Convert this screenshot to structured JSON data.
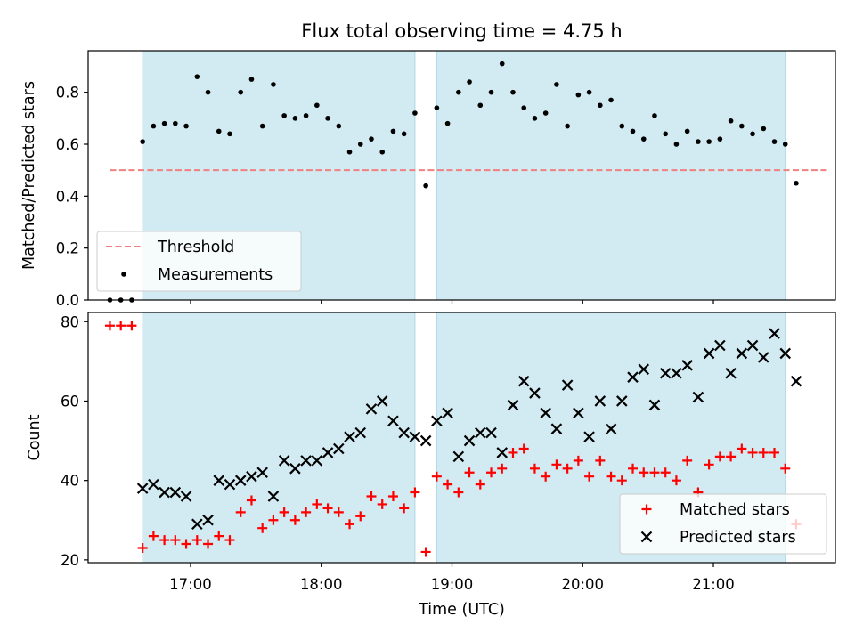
{
  "title": "Flux total observing time = 4.75 h",
  "colors": {
    "shade": "#add8e6",
    "threshold": "#f08080",
    "measurement": "#000000",
    "matched": "#ff0000",
    "predicted": "#000000"
  },
  "chart_data": [
    {
      "type": "scatter",
      "panel": "top",
      "title": "Flux total observing time = 4.75 h",
      "xlabel": "",
      "ylabel": "Matched/Predicted stars",
      "xlim": [
        "16:13",
        "21:56"
      ],
      "ylim": [
        0,
        0.96
      ],
      "yticks": [
        0.0,
        0.2,
        0.4,
        0.6,
        0.8
      ],
      "ytick_labels": [
        "0.0",
        "0.2",
        "0.4",
        "0.6",
        "0.8"
      ],
      "xticks": [
        "17:00",
        "18:00",
        "19:00",
        "20:00",
        "21:00"
      ],
      "grid": false,
      "legend_position": "lower-left",
      "legend": [
        "Threshold",
        "Measurements"
      ],
      "observing_windows": [
        [
          "16:38",
          "18:43"
        ],
        [
          "18:53",
          "21:33"
        ]
      ],
      "threshold": {
        "name": "Threshold",
        "y": 0.5,
        "x_range": [
          "16:23",
          "21:53"
        ]
      },
      "series": [
        {
          "name": "Measurements",
          "x": [
            "16:23",
            "16:28",
            "16:33",
            "16:38",
            "16:43",
            "16:48",
            "16:53",
            "16:58",
            "17:03",
            "17:08",
            "17:13",
            "17:18",
            "17:23",
            "17:28",
            "17:33",
            "17:38",
            "17:43",
            "17:48",
            "17:53",
            "17:58",
            "18:03",
            "18:08",
            "18:13",
            "18:18",
            "18:23",
            "18:28",
            "18:33",
            "18:38",
            "18:43",
            "18:48",
            "18:53",
            "18:58",
            "19:03",
            "19:08",
            "19:13",
            "19:18",
            "19:23",
            "19:28",
            "19:33",
            "19:38",
            "19:43",
            "19:48",
            "19:53",
            "19:58",
            "20:03",
            "20:08",
            "20:13",
            "20:18",
            "20:23",
            "20:28",
            "20:33",
            "20:38",
            "20:43",
            "20:48",
            "20:53",
            "20:58",
            "21:03",
            "21:08",
            "21:13",
            "21:18",
            "21:23",
            "21:28",
            "21:33",
            "21:38"
          ],
          "y": [
            0.0,
            0.0,
            0.0,
            0.61,
            0.67,
            0.68,
            0.68,
            0.67,
            0.86,
            0.8,
            0.65,
            0.64,
            0.8,
            0.85,
            0.67,
            0.83,
            0.71,
            0.7,
            0.71,
            0.75,
            0.7,
            0.67,
            0.57,
            0.6,
            0.62,
            0.57,
            0.65,
            0.64,
            0.72,
            0.44,
            0.74,
            0.68,
            0.8,
            0.84,
            0.75,
            0.8,
            0.91,
            0.8,
            0.74,
            0.7,
            0.72,
            0.83,
            0.67,
            0.79,
            0.8,
            0.75,
            0.77,
            0.67,
            0.65,
            0.62,
            0.71,
            0.64,
            0.6,
            0.65,
            0.61,
            0.61,
            0.62,
            0.69,
            0.67,
            0.64,
            0.66,
            0.61,
            0.6,
            0.45
          ]
        }
      ]
    },
    {
      "type": "scatter",
      "panel": "bottom",
      "xlabel": "Time (UTC)",
      "ylabel": "Count",
      "xlim": [
        "16:13",
        "21:56"
      ],
      "ylim": [
        19.3,
        82.3
      ],
      "yticks": [
        20,
        40,
        60,
        80
      ],
      "ytick_labels": [
        "20",
        "40",
        "60",
        "80"
      ],
      "xticks": [
        "17:00",
        "18:00",
        "19:00",
        "20:00",
        "21:00"
      ],
      "xtick_labels": [
        "17:00",
        "18:00",
        "19:00",
        "20:00",
        "21:00"
      ],
      "grid": false,
      "legend_position": "lower-right",
      "legend": [
        "Matched stars",
        "Predicted stars"
      ],
      "observing_windows": [
        [
          "16:38",
          "18:43"
        ],
        [
          "18:53",
          "21:33"
        ]
      ],
      "series": [
        {
          "name": "Matched stars",
          "marker": "+",
          "x": [
            "16:23",
            "16:28",
            "16:33",
            "16:38",
            "16:43",
            "16:48",
            "16:53",
            "16:58",
            "17:03",
            "17:08",
            "17:13",
            "17:18",
            "17:23",
            "17:28",
            "17:33",
            "17:38",
            "17:43",
            "17:48",
            "17:53",
            "17:58",
            "18:03",
            "18:08",
            "18:13",
            "18:18",
            "18:23",
            "18:28",
            "18:33",
            "18:38",
            "18:43",
            "18:48",
            "18:53",
            "18:58",
            "19:03",
            "19:08",
            "19:13",
            "19:18",
            "19:23",
            "19:28",
            "19:33",
            "19:38",
            "19:43",
            "19:48",
            "19:53",
            "19:58",
            "20:03",
            "20:08",
            "20:13",
            "20:18",
            "20:23",
            "20:28",
            "20:33",
            "20:38",
            "20:43",
            "20:48",
            "20:53",
            "20:58",
            "21:03",
            "21:08",
            "21:13",
            "21:18",
            "21:23",
            "21:28",
            "21:33",
            "21:38"
          ],
          "y": [
            79,
            79,
            79,
            23,
            26,
            25,
            25,
            24,
            25,
            24,
            26,
            25,
            32,
            35,
            28,
            30,
            32,
            30,
            32,
            34,
            33,
            32,
            29,
            31,
            36,
            34,
            36,
            33,
            37,
            22,
            41,
            39,
            37,
            42,
            39,
            42,
            43,
            47,
            48,
            43,
            41,
            44,
            43,
            45,
            41,
            45,
            41,
            40,
            43,
            42,
            42,
            42,
            40,
            45,
            37,
            44,
            46,
            46,
            48,
            47,
            47,
            47,
            43,
            29
          ]
        },
        {
          "name": "Predicted stars",
          "marker": "x",
          "x": [
            "16:38",
            "16:43",
            "16:48",
            "16:53",
            "16:58",
            "17:03",
            "17:08",
            "17:13",
            "17:18",
            "17:23",
            "17:28",
            "17:33",
            "17:38",
            "17:43",
            "17:48",
            "17:53",
            "17:58",
            "18:03",
            "18:08",
            "18:13",
            "18:18",
            "18:23",
            "18:28",
            "18:33",
            "18:38",
            "18:43",
            "18:48",
            "18:53",
            "18:58",
            "19:03",
            "19:08",
            "19:13",
            "19:18",
            "19:23",
            "19:28",
            "19:33",
            "19:38",
            "19:43",
            "19:48",
            "19:53",
            "19:58",
            "20:03",
            "20:08",
            "20:13",
            "20:18",
            "20:23",
            "20:28",
            "20:33",
            "20:38",
            "20:43",
            "20:48",
            "20:53",
            "20:58",
            "21:03",
            "21:08",
            "21:13",
            "21:18",
            "21:23",
            "21:28",
            "21:33",
            "21:38"
          ],
          "y": [
            38,
            39,
            37,
            37,
            36,
            29,
            30,
            40,
            39,
            40,
            41,
            42,
            36,
            45,
            43,
            45,
            45,
            47,
            48,
            51,
            52,
            58,
            60,
            55,
            52,
            51,
            50,
            55,
            57,
            46,
            50,
            52,
            52,
            47,
            59,
            65,
            62,
            57,
            53,
            64,
            57,
            51,
            60,
            53,
            60,
            66,
            68,
            59,
            67,
            67,
            69,
            61,
            72,
            74,
            67,
            72,
            74,
            71,
            77,
            72,
            65
          ]
        }
      ]
    }
  ]
}
